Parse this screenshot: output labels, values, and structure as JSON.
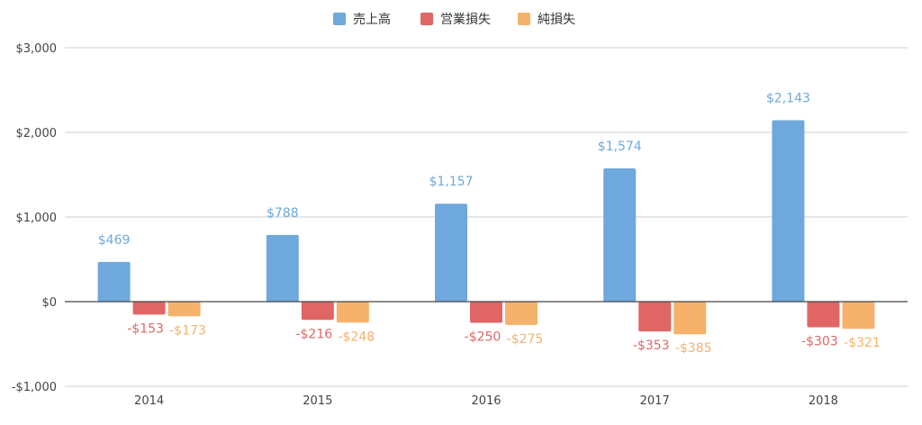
{
  "chart_data": {
    "type": "bar",
    "categories": [
      "2014",
      "2015",
      "2016",
      "2017",
      "2018"
    ],
    "series": [
      {
        "name": "売上高",
        "color": "#6fa8dc",
        "values": [
          469,
          788,
          1157,
          1574,
          2143
        ],
        "labels": [
          "$469",
          "$788",
          "$1,157",
          "$1,574",
          "$2,143"
        ]
      },
      {
        "name": "営業損失",
        "color": "#e06666",
        "values": [
          -153,
          -216,
          -250,
          -353,
          -303
        ],
        "labels": [
          "-$153",
          "-$216",
          "-$250",
          "-$353",
          "-$303"
        ]
      },
      {
        "name": "純損失",
        "color": "#f6b26b",
        "values": [
          -173,
          -248,
          -275,
          -385,
          -321
        ],
        "labels": [
          "-$173",
          "-$248",
          "-$275",
          "-$385",
          "-$321"
        ]
      }
    ],
    "y_ticks": [
      3000,
      2000,
      1000,
      0,
      -1000
    ],
    "y_tick_labels": [
      "$3,000",
      "$2,000",
      "$1,000",
      "$0",
      "-$1,000"
    ],
    "ylim": [
      -1000,
      3000
    ],
    "legend_position": "top-center",
    "grid": true
  }
}
